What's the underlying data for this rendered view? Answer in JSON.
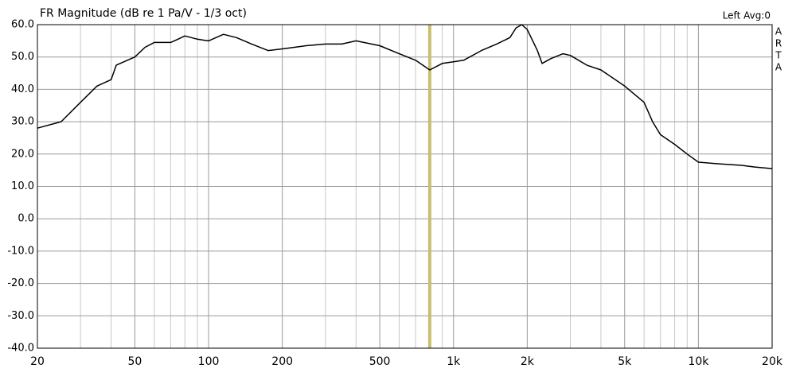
{
  "chart_data": {
    "type": "line",
    "title": "FR Magnitude (dB re 1 Pa/V - 1/3 oct)",
    "status": "Left  Avg:0",
    "side_label": [
      "A",
      "R",
      "T",
      "A"
    ],
    "xscale": "log",
    "xlim": [
      20,
      20000
    ],
    "ylim": [
      -40,
      60
    ],
    "xticks": [
      20,
      50,
      100,
      200,
      500,
      {
        "value": 1000,
        "label": "1k"
      },
      {
        "value": 2000,
        "label": "2k"
      },
      {
        "value": 5000,
        "label": "5k"
      },
      {
        "value": 10000,
        "label": "10k"
      },
      {
        "value": 20000,
        "label": "20k"
      }
    ],
    "xminor": [
      30,
      40,
      60,
      70,
      80,
      90,
      300,
      400,
      600,
      700,
      800,
      900,
      3000,
      4000,
      6000,
      7000,
      8000,
      9000
    ],
    "yticks": [
      {
        "value": 60,
        "label": "60.0"
      },
      {
        "value": 50,
        "label": "50.0"
      },
      {
        "value": 40,
        "label": "40.0"
      },
      {
        "value": 30,
        "label": "30.0"
      },
      {
        "value": 20,
        "label": "20.0"
      },
      {
        "value": 10,
        "label": "10.0"
      },
      {
        "value": 0,
        "label": "0.0"
      },
      {
        "value": -10,
        "label": "-10.0"
      },
      {
        "value": -20,
        "label": "-20.0"
      },
      {
        "value": -30,
        "label": "-30.0"
      },
      {
        "value": -40,
        "label": "-40.0"
      }
    ],
    "grid": true,
    "cursor": {
      "x": 800,
      "color": "#c8c070"
    },
    "color": "#000000",
    "x": [
      20,
      25,
      30,
      35,
      40,
      42,
      50,
      55,
      60,
      70,
      75,
      80,
      90,
      100,
      115,
      130,
      150,
      175,
      200,
      250,
      300,
      350,
      400,
      500,
      600,
      700,
      800,
      900,
      1000,
      1100,
      1300,
      1500,
      1700,
      1800,
      1900,
      2000,
      2200,
      2300,
      2500,
      2800,
      3000,
      3500,
      4000,
      5000,
      6000,
      6500,
      7000,
      8000,
      9000,
      10000,
      12000,
      15000,
      17000,
      20000
    ],
    "values": [
      28,
      30,
      36,
      41,
      43,
      47.5,
      50,
      53,
      54.5,
      54.5,
      55.5,
      56.5,
      55.5,
      55,
      57,
      56,
      54,
      52,
      52.5,
      53.5,
      54,
      54,
      55,
      53.5,
      51,
      49,
      46,
      48,
      48.5,
      49,
      52,
      54,
      56,
      59,
      60,
      58.5,
      52,
      48,
      49.5,
      51,
      50.5,
      47.5,
      46,
      41,
      36,
      30,
      26,
      23,
      20,
      17.5,
      17,
      16.5,
      16,
      15.5
    ]
  }
}
